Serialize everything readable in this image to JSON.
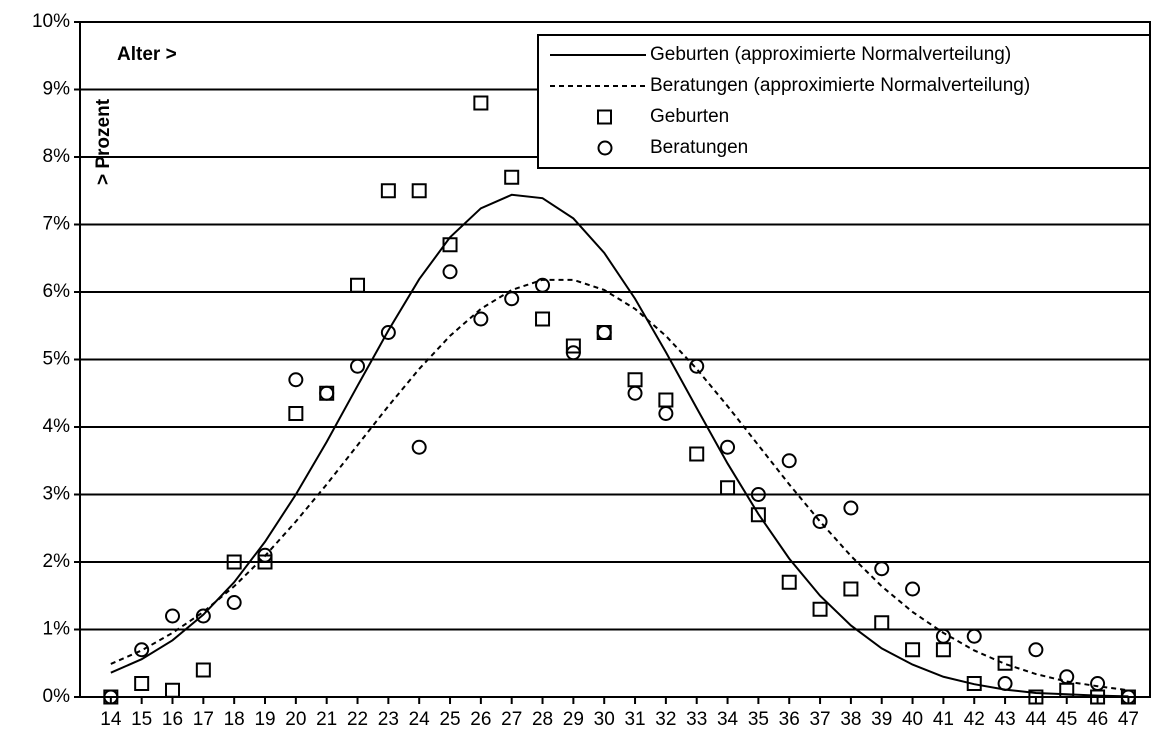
{
  "chart_data": {
    "type": "scatter",
    "x_label": "Alter >",
    "y_label": "> Prozent",
    "x": [
      14,
      15,
      16,
      17,
      18,
      19,
      20,
      21,
      22,
      23,
      24,
      25,
      26,
      27,
      28,
      29,
      30,
      31,
      32,
      33,
      34,
      35,
      36,
      37,
      38,
      39,
      40,
      41,
      42,
      43,
      44,
      45,
      46,
      47
    ],
    "xlim": [
      13,
      47.7
    ],
    "xticks": [
      14,
      15,
      16,
      17,
      18,
      19,
      20,
      21,
      22,
      23,
      24,
      25,
      26,
      27,
      28,
      29,
      30,
      31,
      32,
      33,
      34,
      35,
      36,
      37,
      38,
      39,
      40,
      41,
      42,
      43,
      44,
      45,
      46,
      47
    ],
    "ylim": [
      0,
      10
    ],
    "yticks": [
      {
        "value": 0,
        "label": "0%"
      },
      {
        "value": 1,
        "label": "1%"
      },
      {
        "value": 2,
        "label": "2%"
      },
      {
        "value": 3,
        "label": "3%"
      },
      {
        "value": 4,
        "label": "4%"
      },
      {
        "value": 5,
        "label": "5%"
      },
      {
        "value": 6,
        "label": "6%"
      },
      {
        "value": 7,
        "label": "7%"
      },
      {
        "value": 8,
        "label": "8%"
      },
      {
        "value": 9,
        "label": "9%"
      },
      {
        "value": 10,
        "label": "10%"
      }
    ],
    "grid": true,
    "legend": "top-right",
    "series": [
      {
        "name": "Geburten (approximierte Normalverteilung)",
        "color": "#000000",
        "style": "line",
        "dash": false,
        "values": [
          0.36,
          0.56,
          0.84,
          1.22,
          1.7,
          2.3,
          3.0,
          3.78,
          4.61,
          5.43,
          6.19,
          6.81,
          7.24,
          7.44,
          7.39,
          7.09,
          6.58,
          5.9,
          5.11,
          4.28,
          3.46,
          2.71,
          2.05,
          1.5,
          1.06,
          0.72,
          0.48,
          0.3,
          0.19,
          0.11,
          0.06,
          0.04,
          0.02,
          0.01
        ]
      },
      {
        "name": "Beratungen (approximierte Normalverteilung)",
        "color": "#000000",
        "style": "line",
        "dash": true,
        "values": [
          0.49,
          0.69,
          0.95,
          1.26,
          1.64,
          2.09,
          2.6,
          3.15,
          3.73,
          4.31,
          4.86,
          5.35,
          5.75,
          6.03,
          6.18,
          6.18,
          6.03,
          5.75,
          5.35,
          4.86,
          4.31,
          3.73,
          3.15,
          2.6,
          2.09,
          1.64,
          1.26,
          0.95,
          0.69,
          0.49,
          0.34,
          0.23,
          0.16,
          0.1
        ]
      },
      {
        "name": "Geburten",
        "color": "#000000",
        "style": "marker",
        "marker": "square",
        "values": [
          0.0,
          0.2,
          0.1,
          0.4,
          2.0,
          2.0,
          4.2,
          4.5,
          6.1,
          7.5,
          7.5,
          6.7,
          8.8,
          7.7,
          5.6,
          5.2,
          5.4,
          4.7,
          4.4,
          3.6,
          3.1,
          2.7,
          1.7,
          1.3,
          1.6,
          1.1,
          0.7,
          0.7,
          0.2,
          0.5,
          0.0,
          0.1,
          0.0,
          0.0
        ]
      },
      {
        "name": "Beratungen",
        "color": "#000000",
        "style": "marker",
        "marker": "circle",
        "values": [
          0.0,
          0.7,
          1.2,
          1.2,
          1.4,
          2.1,
          4.7,
          4.5,
          4.9,
          5.4,
          3.7,
          6.3,
          5.6,
          5.9,
          6.1,
          5.1,
          5.4,
          4.5,
          4.2,
          4.9,
          3.7,
          3.0,
          3.5,
          2.6,
          2.8,
          1.9,
          1.6,
          0.9,
          0.9,
          0.2,
          0.7,
          0.3,
          0.2,
          0.0
        ]
      }
    ]
  }
}
